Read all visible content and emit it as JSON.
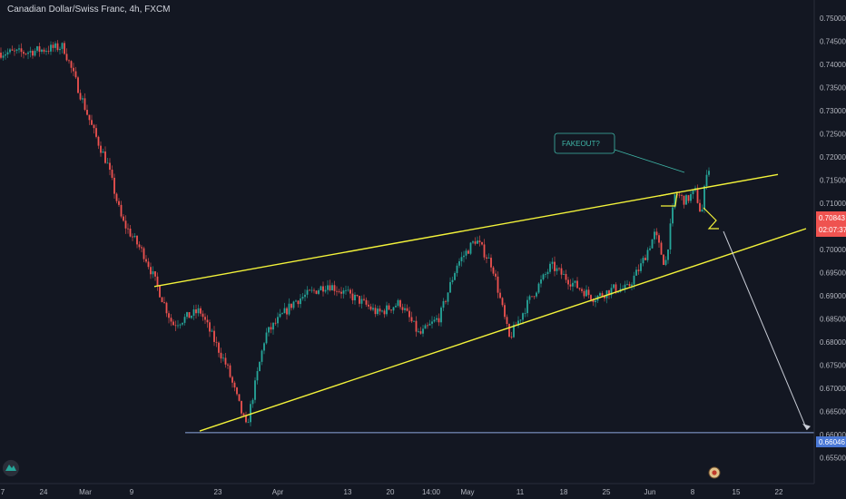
{
  "header": {
    "symbol_title": "Canadian Dollar/Swiss Franc, 4h, FXCM"
  },
  "colors": {
    "background": "#131722",
    "up": "#26a69a",
    "down": "#ef5350",
    "trendline": "#f3f33a",
    "projection": "#c8ccd6",
    "support": "#8fa8e0",
    "current_price_tag": "#ef5350",
    "target_price_tag": "#4a78d6",
    "note": "#3fb7a8"
  },
  "y_axis": {
    "ticks": [
      "0.75000",
      "0.74500",
      "0.74000",
      "0.73500",
      "0.73000",
      "0.72500",
      "0.72000",
      "0.71500",
      "0.71000",
      "0.70500",
      "0.70000",
      "0.69500",
      "0.69000",
      "0.68500",
      "0.68000",
      "0.67500",
      "0.67000",
      "0.66500",
      "0.66000",
      "0.65500"
    ],
    "current_price": "0.70843",
    "countdown": "02:07:37",
    "target_price": "0.66046"
  },
  "x_axis": {
    "ticks": [
      "7",
      "24",
      "Mar",
      "9",
      "23",
      "Apr",
      "13",
      "20",
      "14:00",
      "May",
      "11",
      "18",
      "25",
      "Jun",
      "8",
      "15",
      "22"
    ]
  },
  "annotation": {
    "text": "FAKEOUT?"
  },
  "chart_data": {
    "type": "candlestick",
    "title": "Canadian Dollar/Swiss Franc, 4h, FXCM",
    "ylim": [
      0.652,
      0.7525
    ],
    "price_path": [
      [
        "7",
        0.7425
      ],
      [
        "24",
        0.7438
      ],
      [
        "Mar",
        0.726
      ],
      [
        "Mar",
        0.7185
      ],
      [
        "Mar",
        0.7062
      ],
      [
        "9",
        0.6985
      ],
      [
        "9",
        0.6838
      ],
      [
        "9",
        0.6868
      ],
      [
        "23",
        0.6745
      ],
      [
        "23",
        0.6615
      ],
      [
        "23",
        0.6815
      ],
      [
        "Apr",
        0.6888
      ],
      [
        "Apr",
        0.6925
      ],
      [
        "13",
        0.6892
      ],
      [
        "13",
        0.6862
      ],
      [
        "20",
        0.6885
      ],
      [
        "20",
        0.6815
      ],
      [
        "14:00",
        0.6855
      ],
      [
        "14:00",
        0.6968
      ],
      [
        "May",
        0.7022
      ],
      [
        "May",
        0.6965
      ],
      [
        "May",
        0.6808
      ],
      [
        "11",
        0.6895
      ],
      [
        "11",
        0.6965
      ],
      [
        "18",
        0.6925
      ],
      [
        "18",
        0.6895
      ],
      [
        "25",
        0.6915
      ],
      [
        "25",
        0.6915
      ],
      [
        "25",
        0.6965
      ],
      [
        "Jun",
        0.7035
      ],
      [
        "Jun",
        0.6965
      ],
      [
        "Jun",
        0.7122
      ],
      [
        "Jun",
        0.7105
      ],
      [
        "8",
        0.7125
      ],
      [
        "8",
        0.7072
      ],
      [
        "8",
        0.7185
      ],
      [
        "8",
        0.7148
      ],
      [
        "8",
        0.7105
      ],
      [
        "8",
        0.7075
      ],
      [
        "8",
        0.7095
      ]
    ],
    "trendlines": [
      {
        "name": "upper",
        "start": [
          0.692
        ],
        "end": [
          0.7162
        ]
      },
      {
        "name": "lower",
        "start": [
          0.6608
        ],
        "end": [
          0.7045
        ]
      }
    ],
    "horizontal_level": 0.66046,
    "projection_target": 0.66046
  }
}
